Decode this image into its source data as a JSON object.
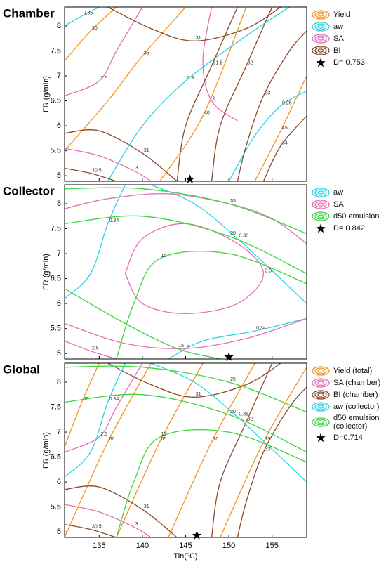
{
  "chart_data": [
    {
      "type": "contour",
      "title": "Chamber",
      "ylabel": "FR (g/min)",
      "xlim": [
        131,
        159
      ],
      "ylim": [
        4.89,
        8.38
      ],
      "xticks": [
        135,
        140,
        145,
        150,
        155
      ],
      "yticks": [
        5,
        5.5,
        6,
        6.5,
        7,
        7.5,
        8
      ],
      "series": [
        {
          "name": "Yield",
          "color": "#f7931e",
          "contours": [
            {
              "level": 30,
              "x": [
                131,
                134,
                137
              ],
              "y": [
                7.3,
                7.9,
                8.38
              ]
            },
            {
              "level": 35,
              "x": [
                131,
                136,
                140,
                145
              ],
              "y": [
                5.5,
                6.5,
                7.4,
                8.38
              ]
            },
            {
              "level": 40,
              "x": [
                142,
                147,
                152
              ],
              "y": [
                4.89,
                6.2,
                8.38
              ]
            },
            {
              "level": 45,
              "x": [
                153,
                156,
                159
              ],
              "y": [
                4.89,
                5.9,
                7.0
              ]
            }
          ]
        },
        {
          "name": "aw",
          "color": "#2ad4e6",
          "contours": [
            {
              "level": 0.35,
              "x": [
                131,
                133,
                135
              ],
              "y": [
                8.0,
                8.2,
                8.38
              ]
            },
            {
              "level": 0.3,
              "x": [
                136,
                140,
                145,
                152,
                157
              ],
              "y": [
                4.89,
                6.0,
                6.9,
                7.8,
                8.38
              ]
            },
            {
              "level": 0.25,
              "x": [
                150,
                153,
                156,
                159
              ],
              "y": [
                4.89,
                5.8,
                6.4,
                6.7
              ]
            }
          ]
        },
        {
          "name": "SA",
          "color": "#e96cb8",
          "contours": [
            {
              "level": 3,
              "x": [
                131,
                135,
                139,
                141
              ],
              "y": [
                5.55,
                5.4,
                5.1,
                4.89
              ]
            },
            {
              "level": 2.5,
              "x": [
                140,
                137,
                135,
                131
              ],
              "y": [
                8.38,
                7.5,
                6.9,
                6.6
              ]
            },
            {
              "level": 3,
              "x": [
                148,
                147,
                148,
                151
              ],
              "y": [
                8.38,
                7.3,
                6.5,
                6.1
              ]
            }
          ]
        },
        {
          "name": "BI",
          "color": "#8b4a2b",
          "contours": [
            {
              "level": 30.5,
              "x": [
                131,
                134,
                137
              ],
              "y": [
                5.15,
                5.05,
                4.89
              ]
            },
            {
              "level": 31,
              "x": [
                131,
                135,
                140,
                144
              ],
              "y": [
                5.85,
                5.9,
                5.45,
                4.89
              ]
            },
            {
              "level": 31,
              "x": [
                136,
                141,
                146,
                152,
                156
              ],
              "y": [
                8.38,
                7.95,
                7.7,
                7.95,
                8.38
              ]
            },
            {
              "level": 31.5,
              "x": [
                144,
                145,
                148,
                151
              ],
              "y": [
                4.89,
                6.0,
                7.2,
                8.38
              ]
            },
            {
              "level": 32,
              "x": [
                148,
                149,
                152,
                155
              ],
              "y": [
                4.89,
                6.0,
                7.2,
                8.38
              ]
            },
            {
              "level": 33,
              "x": [
                151,
                152,
                154,
                157,
                159
              ],
              "y": [
                4.89,
                5.6,
                6.6,
                7.5,
                7.9
              ]
            },
            {
              "level": 34,
              "x": [
                154,
                156,
                159
              ],
              "y": [
                4.89,
                5.6,
                6.2
              ]
            }
          ]
        }
      ],
      "optimum": {
        "label": "D= 0.753",
        "x": 145.5,
        "y": 4.93
      }
    },
    {
      "type": "contour",
      "title": "Collector",
      "ylabel": "FR (g/min)",
      "xlim": [
        131,
        159
      ],
      "ylim": [
        4.89,
        8.38
      ],
      "xticks": [
        135,
        140,
        145,
        150,
        155
      ],
      "yticks": [
        5,
        5.5,
        6,
        6.5,
        7,
        7.5,
        8
      ],
      "series": [
        {
          "name": "aw",
          "color": "#2ad4e6",
          "contours": [
            {
              "level": 0.34,
              "x": [
                131,
                134,
                136,
                138
              ],
              "y": [
                6.1,
                6.6,
                7.6,
                8.38
              ]
            },
            {
              "level": 0.36,
              "x": [
                141,
                146,
                151,
                159
              ],
              "y": [
                8.38,
                8.0,
                7.3,
                6.0
              ]
            },
            {
              "level": 0.34,
              "x": [
                143,
                147,
                153,
                159
              ],
              "y": [
                4.89,
                5.25,
                5.45,
                5.7
              ]
            }
          ]
        },
        {
          "name": "SA",
          "color": "#e96cb8",
          "contours": [
            {
              "level": 3.5,
              "x": [
                138,
                140,
                145,
                151,
                154,
                151,
                145,
                140,
                138
              ],
              "y": [
                6.6,
                7.3,
                7.6,
                7.2,
                6.6,
                6.0,
                5.8,
                6.0,
                6.6
              ]
            },
            {
              "level": 3,
              "x": [
                131,
                136,
                143,
                150,
                155,
                159
              ],
              "y": [
                7.9,
                8.1,
                8.2,
                8.0,
                7.7,
                7.2
              ]
            },
            {
              "level": 3,
              "x": [
                131,
                138,
                145,
                152,
                159
              ],
              "y": [
                5.6,
                5.2,
                5.1,
                5.3,
                5.7
              ]
            },
            {
              "level": 2.5,
              "x": [
                131,
                134,
                137
              ],
              "y": [
                5.25,
                5.05,
                4.89
              ]
            }
          ]
        },
        {
          "name": "d50 emulsion",
          "color": "#3dd63d",
          "contours": [
            {
              "level": 25,
              "x": [
                131,
                140,
                150,
                159
              ],
              "y": [
                8.3,
                8.3,
                8.0,
                7.4
              ]
            },
            {
              "level": 20,
              "x": [
                131,
                140,
                150,
                159
              ],
              "y": [
                7.6,
                7.75,
                7.35,
                6.6
              ]
            },
            {
              "level": 15,
              "x": [
                137,
                139,
                142,
                150,
                159
              ],
              "y": [
                4.89,
                6.0,
                6.9,
                7.0,
                6.4
              ]
            },
            {
              "level": 15,
              "x": [
                131,
                138,
                144,
                149
              ],
              "y": [
                6.3,
                5.6,
                5.1,
                4.89
              ]
            }
          ]
        }
      ],
      "optimum": {
        "label": "D= 0.842",
        "x": 150,
        "y": 4.93
      }
    },
    {
      "type": "contour",
      "title": "Global",
      "ylabel": "FR (g/min)",
      "xlabel": "Tin(ºC)",
      "xlim": [
        131,
        159
      ],
      "ylim": [
        4.89,
        8.38
      ],
      "xticks": [
        135,
        140,
        145,
        150,
        155
      ],
      "yticks": [
        5,
        5.5,
        6,
        6.5,
        7,
        7.5,
        8
      ],
      "series": [
        {
          "name": "Yield (total)",
          "color": "#f7931e",
          "contours": [
            {
              "level": 55,
              "x": [
                131,
                133,
                135
              ],
              "y": [
                6.7,
                7.6,
                8.38
              ]
            },
            {
              "level": 60,
              "x": [
                131,
                136,
                141
              ],
              "y": [
                4.89,
                6.8,
                8.38
              ]
            },
            {
              "level": 65,
              "x": [
                137,
                142,
                147
              ],
              "y": [
                4.89,
                6.8,
                8.38
              ]
            },
            {
              "level": 70,
              "x": [
                143,
                148,
                153
              ],
              "y": [
                4.89,
                6.8,
                8.38
              ]
            },
            {
              "level": 75,
              "x": [
                149,
                154,
                159
              ],
              "y": [
                4.89,
                6.8,
                8.3
              ]
            }
          ]
        },
        {
          "name": "SA (chamber)",
          "color": "#e96cb8",
          "contours": [
            {
              "level": 3,
              "x": [
                131,
                135,
                139,
                141
              ],
              "y": [
                5.55,
                5.4,
                5.1,
                4.89
              ]
            },
            {
              "level": 2.5,
              "x": [
                140,
                137,
                135,
                131
              ],
              "y": [
                8.38,
                7.5,
                6.9,
                6.6
              ]
            }
          ]
        },
        {
          "name": "BI (chamber)",
          "color": "#8b4a2b",
          "contours": [
            {
              "level": 30.5,
              "x": [
                131,
                134,
                137
              ],
              "y": [
                5.15,
                5.05,
                4.89
              ]
            },
            {
              "level": 31,
              "x": [
                131,
                135,
                140,
                144
              ],
              "y": [
                5.85,
                5.9,
                5.45,
                4.89
              ]
            },
            {
              "level": 31,
              "x": [
                136,
                141,
                146,
                152,
                156
              ],
              "y": [
                8.38,
                7.95,
                7.7,
                7.95,
                8.38
              ]
            },
            {
              "level": 32,
              "x": [
                148,
                149,
                152,
                155
              ],
              "y": [
                4.89,
                6.0,
                7.2,
                8.38
              ]
            },
            {
              "level": 33,
              "x": [
                151,
                152,
                154,
                157,
                159
              ],
              "y": [
                4.89,
                5.6,
                6.6,
                7.5,
                7.9
              ]
            }
          ]
        },
        {
          "name": "aw (collector)",
          "color": "#2ad4e6",
          "contours": [
            {
              "level": 0.34,
              "x": [
                131,
                134,
                136,
                138
              ],
              "y": [
                6.1,
                6.6,
                7.6,
                8.38
              ]
            },
            {
              "level": 0.36,
              "x": [
                141,
                146,
                151,
                159
              ],
              "y": [
                8.38,
                8.0,
                7.3,
                6.0
              ]
            }
          ]
        },
        {
          "name": "d50 emulsion (collector)",
          "color": "#3dd63d",
          "contours": [
            {
              "level": 25,
              "x": [
                131,
                140,
                150,
                159
              ],
              "y": [
                8.3,
                8.3,
                8.0,
                7.4
              ]
            },
            {
              "level": 20,
              "x": [
                131,
                140,
                150,
                159
              ],
              "y": [
                7.6,
                7.75,
                7.35,
                6.6
              ]
            },
            {
              "level": 15,
              "x": [
                137,
                139,
                142,
                150,
                159
              ],
              "y": [
                4.89,
                6.0,
                6.9,
                7.0,
                6.4
              ]
            }
          ]
        }
      ],
      "optimum": {
        "label": "D=0.714",
        "x": 146.3,
        "y": 4.93
      }
    }
  ]
}
